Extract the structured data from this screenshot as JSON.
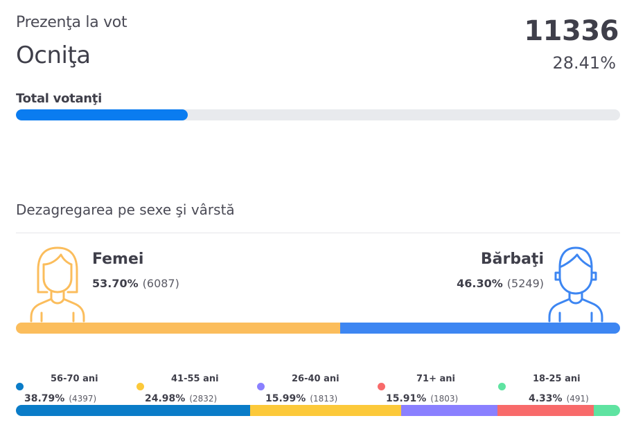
{
  "header": {
    "subtitle": "Prezenţa la vot",
    "region": "Ocniţa",
    "total_count": "11336",
    "total_percent": "28.41%",
    "total_percent_value": 28.41
  },
  "voters": {
    "label": "Total votanţi"
  },
  "breakdown": {
    "title": "Dezagregarea pe sexe şi vârstă"
  },
  "gender": {
    "female": {
      "label": "Femei",
      "percent": "53.70%",
      "count": "(6087)",
      "share": 53.7,
      "color": "#fbbd5c",
      "icon": "female-avatar-icon"
    },
    "male": {
      "label": "Bărbaţi",
      "percent": "46.30%",
      "count": "(5249)",
      "share": 46.3,
      "color": "#3d86f2",
      "icon": "male-avatar-icon"
    }
  },
  "age_groups": [
    {
      "label": "56-70 ani",
      "percent": "38.79%",
      "count": "(4397)",
      "share": 38.79,
      "color": "#0a7cc8"
    },
    {
      "label": "41-55 ani",
      "percent": "24.98%",
      "count": "(2832)",
      "share": 24.98,
      "color": "#fcc93a"
    },
    {
      "label": "26-40 ani",
      "percent": "15.99%",
      "count": "(1813)",
      "share": 15.99,
      "color": "#8a80ff"
    },
    {
      "label": "71+ ani",
      "percent": "15.91%",
      "count": "(1803)",
      "share": 15.91,
      "color": "#f86a6a"
    },
    {
      "label": "18-25 ani",
      "percent": "4.33%",
      "count": "(491)",
      "share": 4.33,
      "color": "#5fe3a1"
    }
  ]
}
